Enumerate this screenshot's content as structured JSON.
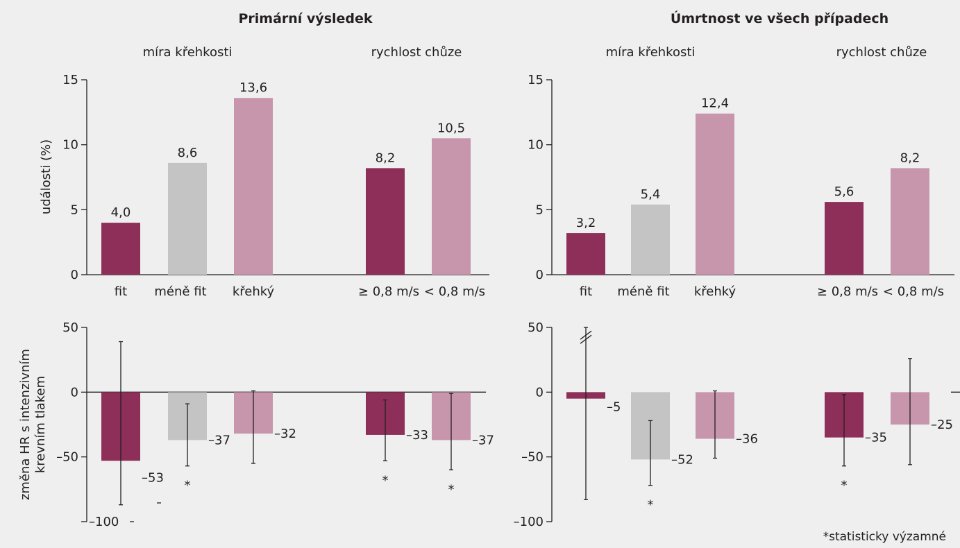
{
  "colors": {
    "dark": "#8e2f5a",
    "grey": "#c4c4c4",
    "light": "#c896ac",
    "text": "#231f20",
    "background": "#efefef"
  },
  "titles": {
    "left": "Primární výsledek",
    "right": "Úmrtnost ve všech případech"
  },
  "groups": {
    "frailty": "míra křehkosti",
    "speed": "rychlost chůze"
  },
  "footnote": "*statisticky výzamné",
  "chart_data": [
    {
      "type": "bar",
      "panel": "top-left",
      "ylabel": "události (%)",
      "ylim": [
        0,
        15
      ],
      "yticks": [
        "0",
        "5",
        "10",
        "15"
      ],
      "categories": [
        "fit",
        "méně fit",
        "křehký",
        "≥ 0,8 m/s",
        "< 0,8 m/s"
      ],
      "values": [
        4.0,
        8.6,
        13.6,
        8.2,
        10.5
      ],
      "labels": [
        "4,0",
        "8,6",
        "13,6",
        "8,2",
        "10,5"
      ],
      "colors": [
        "dark",
        "grey",
        "light",
        "dark",
        "light"
      ]
    },
    {
      "type": "bar",
      "panel": "top-right",
      "ylabel": "",
      "ylim": [
        0,
        15
      ],
      "yticks": [
        "0",
        "5",
        "10",
        "15"
      ],
      "categories": [
        "fit",
        "méně fit",
        "křehký",
        "≥ 0,8 m/s",
        "< 0,8 m/s"
      ],
      "values": [
        3.2,
        5.4,
        12.4,
        5.6,
        8.2
      ],
      "labels": [
        "3,2",
        "5,4",
        "12,4",
        "5,6",
        "8,2"
      ],
      "colors": [
        "dark",
        "grey",
        "light",
        "dark",
        "light"
      ]
    },
    {
      "type": "bar",
      "panel": "bottom-left",
      "ylabel": [
        "změna HR s intenzivním",
        "krevním tlakem"
      ],
      "ylim": [
        -100,
        50
      ],
      "yticks": [
        "–100",
        "–50",
        "0",
        "50"
      ],
      "values": [
        -53,
        -37,
        -32,
        -33,
        -37
      ],
      "labels": [
        "–53",
        "–37",
        "–32",
        "–33",
        "–37"
      ],
      "ci_low": [
        -87,
        -57,
        -55,
        -53,
        -60
      ],
      "ci_high": [
        39,
        -9,
        1,
        -6,
        -1
      ],
      "significant": [
        false,
        true,
        false,
        true,
        true
      ],
      "colors": [
        "dark",
        "grey",
        "light",
        "dark",
        "light"
      ]
    },
    {
      "type": "bar",
      "panel": "bottom-right",
      "ylabel": "",
      "ylim": [
        -100,
        50
      ],
      "yticks": [
        "–100",
        "–50",
        "0",
        "50"
      ],
      "values": [
        -5,
        -52,
        -36,
        -35,
        -25
      ],
      "labels": [
        "–5",
        "–52",
        "–36",
        "–35",
        "–25"
      ],
      "ci_low": [
        -83,
        -72,
        -51,
        -57,
        -56
      ],
      "ci_high": [
        50,
        -22,
        1,
        -2,
        26
      ],
      "significant": [
        false,
        true,
        false,
        true,
        false
      ],
      "colors": [
        "dark",
        "grey",
        "light",
        "dark",
        "light"
      ]
    }
  ]
}
